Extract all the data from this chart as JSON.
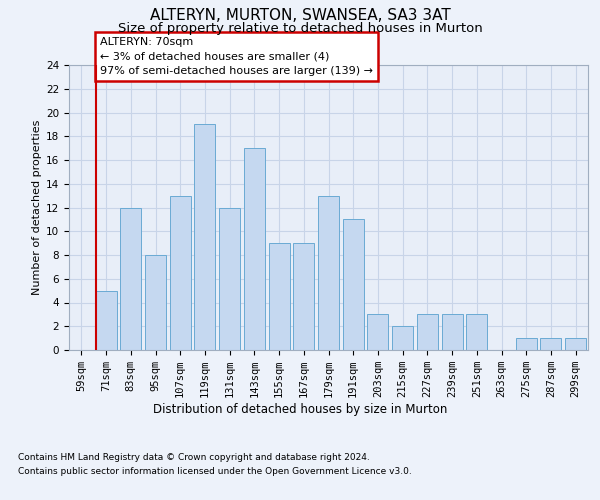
{
  "title": "ALTERYN, MURTON, SWANSEA, SA3 3AT",
  "subtitle": "Size of property relative to detached houses in Murton",
  "xlabel": "Distribution of detached houses by size in Murton",
  "ylabel": "Number of detached properties",
  "categories": [
    "59sqm",
    "71sqm",
    "83sqm",
    "95sqm",
    "107sqm",
    "119sqm",
    "131sqm",
    "143sqm",
    "155sqm",
    "167sqm",
    "179sqm",
    "191sqm",
    "203sqm",
    "215sqm",
    "227sqm",
    "239sqm",
    "251sqm",
    "263sqm",
    "275sqm",
    "287sqm",
    "299sqm"
  ],
  "values": [
    0,
    5,
    12,
    8,
    13,
    19,
    12,
    17,
    9,
    9,
    13,
    11,
    3,
    2,
    3,
    3,
    3,
    0,
    1,
    1,
    1
  ],
  "bar_color": "#c5d8f0",
  "bar_edge_color": "#6aaad4",
  "vline_color": "#cc0000",
  "vline_index": 1,
  "annotation_title": "ALTERYN: 70sqm",
  "annotation_line1": "← 3% of detached houses are smaller (4)",
  "annotation_line2": "97% of semi-detached houses are larger (139) →",
  "annotation_box_facecolor": "#ffffff",
  "annotation_box_edgecolor": "#cc0000",
  "ylim": [
    0,
    24
  ],
  "yticks": [
    0,
    2,
    4,
    6,
    8,
    10,
    12,
    14,
    16,
    18,
    20,
    22,
    24
  ],
  "grid_color": "#c8d4e8",
  "plot_bg_color": "#e8eef8",
  "fig_bg_color": "#edf2fa",
  "title_fontsize": 11,
  "subtitle_fontsize": 9.5,
  "ylabel_fontsize": 8,
  "xlabel_fontsize": 8.5,
  "tick_fontsize": 7.5,
  "footer1": "Contains HM Land Registry data © Crown copyright and database right 2024.",
  "footer2": "Contains public sector information licensed under the Open Government Licence v3.0.",
  "footer_fontsize": 6.5
}
